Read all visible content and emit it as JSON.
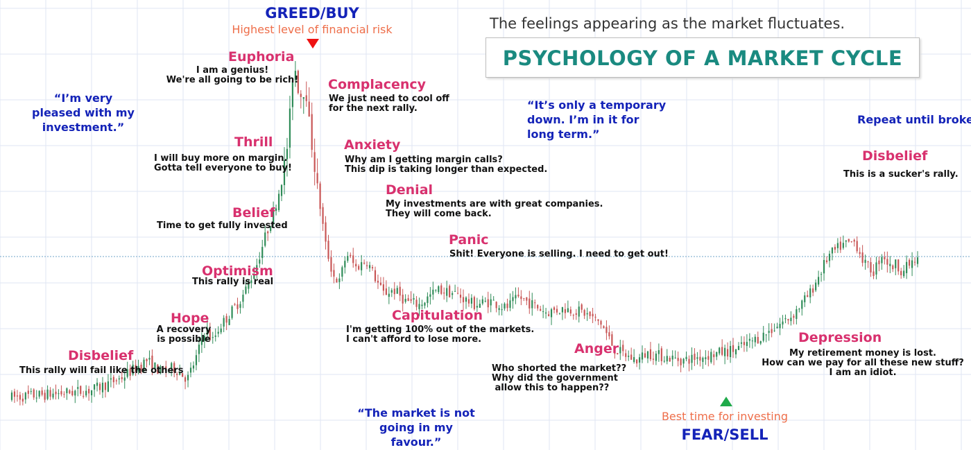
{
  "colors": {
    "up_candle": "#2e8b57",
    "down_candle": "#c85555",
    "stage_label": "#d8316e",
    "note_text": "#111111",
    "quote_text": "#1423b8",
    "title_text": "#1a8a80",
    "risk_text": "#ee6e4a",
    "greed_marker": "#ee1111",
    "fear_marker": "#1faa4a",
    "grid": "#dfe6f3",
    "reference_line": "#6fa6c8"
  },
  "header": {
    "subtitle": "The feelings appearing as the market fluctuates.",
    "title": "PSYCHOLOGY OF A MARKET CYCLE"
  },
  "extremes": {
    "greed_label": "GREED/BUY",
    "greed_note": "Highest level of financial risk",
    "fear_label": "FEAR/SELL",
    "fear_note": "Best time for investing"
  },
  "stages": [
    {
      "label": "Disbelief",
      "note": "This rally will fail like the others"
    },
    {
      "label": "Hope",
      "note": "A recovery\nis possible"
    },
    {
      "label": "Optimism",
      "note": "This rally is real"
    },
    {
      "label": "Belief",
      "note": "Time to get fully invested"
    },
    {
      "label": "Thrill",
      "note": "I will buy more on margin.\nGotta tell everyone to buy!"
    },
    {
      "label": "Euphoria",
      "note": "I am a genius!\nWe're all going to be rich!"
    },
    {
      "label": "Complacency",
      "note": "We just need to cool off\nfor the next rally."
    },
    {
      "label": "Anxiety",
      "note": "Why am I getting margin calls?\nThis dip is taking longer than expected."
    },
    {
      "label": "Denial",
      "note": "My investments are with great companies.\nThey will come back."
    },
    {
      "label": "Panic",
      "note": "Shit! Everyone is selling. I need to get out!"
    },
    {
      "label": "Capitulation",
      "note": "I'm getting 100% out of the markets.\nI can't afford to lose more."
    },
    {
      "label": "Anger",
      "note": "Who shorted the market??\nWhy did the government\n allow this to happen??"
    },
    {
      "label": "Depression",
      "note": "My retirement money is lost.\nHow can we pay for all these new stuff?\nI am an idiot."
    },
    {
      "label": "Disbelief",
      "note": "This is a sucker's rally."
    }
  ],
  "quotes": {
    "pleased": "“I’m very\npleased with my\ninvestment.”",
    "temporary": "“It’s only a temporary\ndown. I’m in it for\nlong term.”",
    "not_favour": "“The market is not\ngoing in my\nfavour.”",
    "repeat": "Repeat until broke."
  },
  "chart_data": {
    "type": "candlestick",
    "title": "PSYCHOLOGY OF A MARKET CYCLE",
    "subtitle": "The feelings appearing as the market fluctuates.",
    "grid": true,
    "reference_line": 43,
    "xlim": [
      0,
      1000
    ],
    "ylim": [
      0,
      100
    ],
    "price_path": {
      "x": [
        0,
        50,
        90,
        120,
        150,
        165,
        180,
        195,
        205,
        215,
        222,
        230,
        240,
        255,
        270,
        280,
        290,
        298,
        305,
        312,
        318,
        325,
        333,
        340,
        347,
        355,
        362,
        370,
        380,
        392,
        400,
        410,
        422,
        435,
        450,
        470,
        490,
        510,
        530,
        545,
        560,
        575,
        590,
        610,
        630,
        650,
        665,
        680,
        690,
        700,
        720,
        740,
        760,
        780,
        800,
        830,
        860,
        880,
        900,
        915,
        930,
        940,
        950,
        960,
        968,
        975,
        982,
        990,
        1000
      ],
      "y": [
        5,
        6,
        7,
        10,
        15,
        12,
        13,
        10,
        16,
        24,
        20,
        24,
        27,
        32,
        40,
        48,
        55,
        63,
        73,
        96,
        86,
        88,
        70,
        58,
        46,
        38,
        36,
        44,
        40,
        42,
        38,
        33,
        34,
        31,
        30,
        34,
        33,
        30,
        31,
        29,
        32,
        30,
        28,
        29,
        28,
        25,
        18,
        16,
        15,
        17,
        16,
        15,
        16,
        17,
        18,
        22,
        27,
        33,
        43,
        46,
        47,
        41,
        39,
        44,
        40,
        41,
        39,
        41,
        42
      ]
    },
    "candles": {
      "count": 330,
      "seed": 7,
      "noise": 2.2
    }
  }
}
